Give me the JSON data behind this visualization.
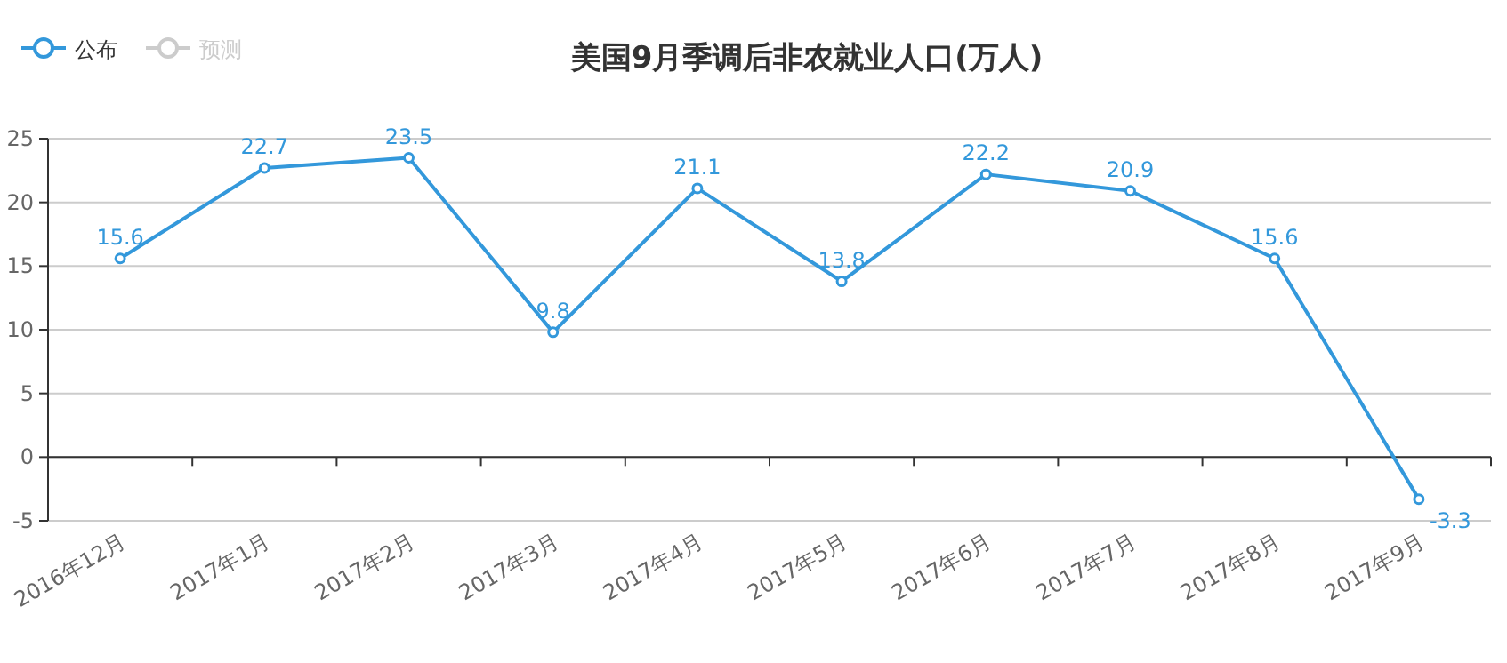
{
  "chart_data": {
    "type": "line",
    "title": "美国9月季调后非农就业人口(万人)",
    "categories": [
      "2016年12月",
      "2017年1月",
      "2017年2月",
      "2017年3月",
      "2017年4月",
      "2017年5月",
      "2017年6月",
      "2017年7月",
      "2017年8月",
      "2017年9月"
    ],
    "series": [
      {
        "name": "公布",
        "color": "#3398db",
        "values": [
          15.6,
          22.7,
          23.5,
          9.8,
          21.1,
          13.8,
          22.2,
          20.9,
          15.6,
          -3.3
        ]
      },
      {
        "name": "预测",
        "color": "#cccccc",
        "values": [
          null,
          null,
          null,
          null,
          null,
          null,
          null,
          null,
          null,
          null
        ]
      }
    ],
    "ylim": [
      -5,
      25
    ],
    "yticks": [
      -5,
      0,
      5,
      10,
      15,
      20,
      25
    ],
    "grid": "y",
    "legend": "top left",
    "marker": "circle",
    "line_style": "solid",
    "data_labels": true
  }
}
